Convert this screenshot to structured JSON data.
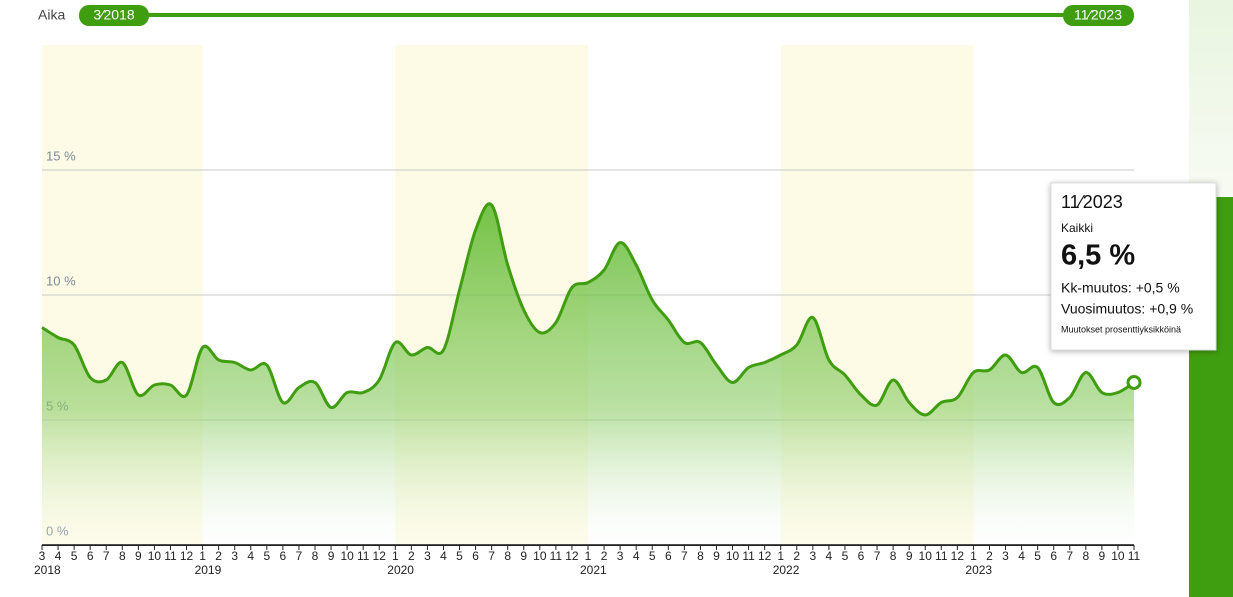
{
  "slider": {
    "label": "Aika",
    "start": "3⁄2018",
    "end": "11⁄2023"
  },
  "chart_data": {
    "type": "area",
    "categories": [
      "3",
      "4",
      "5",
      "6",
      "7",
      "8",
      "9",
      "10",
      "11",
      "12",
      "1",
      "2",
      "3",
      "4",
      "5",
      "6",
      "7",
      "8",
      "9",
      "10",
      "11",
      "12",
      "1",
      "2",
      "3",
      "4",
      "5",
      "6",
      "7",
      "8",
      "9",
      "10",
      "11",
      "12",
      "1",
      "2",
      "3",
      "4",
      "5",
      "6",
      "7",
      "8",
      "9",
      "10",
      "11",
      "12",
      "1",
      "2",
      "3",
      "4",
      "5",
      "6",
      "7",
      "8",
      "9",
      "10",
      "11",
      "12",
      "1",
      "2",
      "3",
      "4",
      "5",
      "6",
      "7",
      "8",
      "9",
      "10",
      "11"
    ],
    "years": [
      "2018",
      "2019",
      "2020",
      "2021",
      "2022",
      "2023"
    ],
    "series": [
      {
        "name": "Kaikki",
        "color": "#3f9d10",
        "values": [
          8.7,
          8.3,
          8.0,
          6.7,
          6.6,
          7.3,
          6.0,
          6.4,
          6.4,
          6.0,
          7.9,
          7.4,
          7.3,
          7.0,
          7.2,
          5.7,
          6.3,
          6.5,
          5.5,
          6.1,
          6.1,
          6.6,
          8.1,
          7.6,
          7.9,
          7.8,
          10.2,
          12.6,
          13.6,
          11.2,
          9.4,
          8.5,
          8.9,
          10.3,
          10.5,
          11.0,
          12.1,
          11.2,
          9.8,
          9.0,
          8.1,
          8.1,
          7.2,
          6.5,
          7.1,
          7.3,
          7.6,
          8.0,
          9.1,
          7.4,
          6.8,
          6.0,
          5.6,
          6.6,
          5.7,
          5.2,
          5.7,
          5.9,
          6.9,
          7.0,
          7.6,
          6.9,
          7.1,
          5.7,
          5.9,
          6.9,
          6.1,
          6.1,
          6.5
        ]
      }
    ],
    "ylim": [
      0,
      20
    ],
    "yticks": [
      {
        "value": 0,
        "label": "0 %"
      },
      {
        "value": 5,
        "label": "5 %"
      },
      {
        "value": 10,
        "label": "10 %"
      },
      {
        "value": 15,
        "label": "15 %"
      }
    ],
    "grid": true,
    "tooltip": {
      "date": "11⁄2023",
      "series": "Kaikki",
      "value": "6,5 %",
      "monthly": "Kk-muutos: +0,5 %",
      "yearly": "Vuosimuutos: +0,9 %",
      "note": "Muutokset prosenttiyksikköinä"
    }
  }
}
